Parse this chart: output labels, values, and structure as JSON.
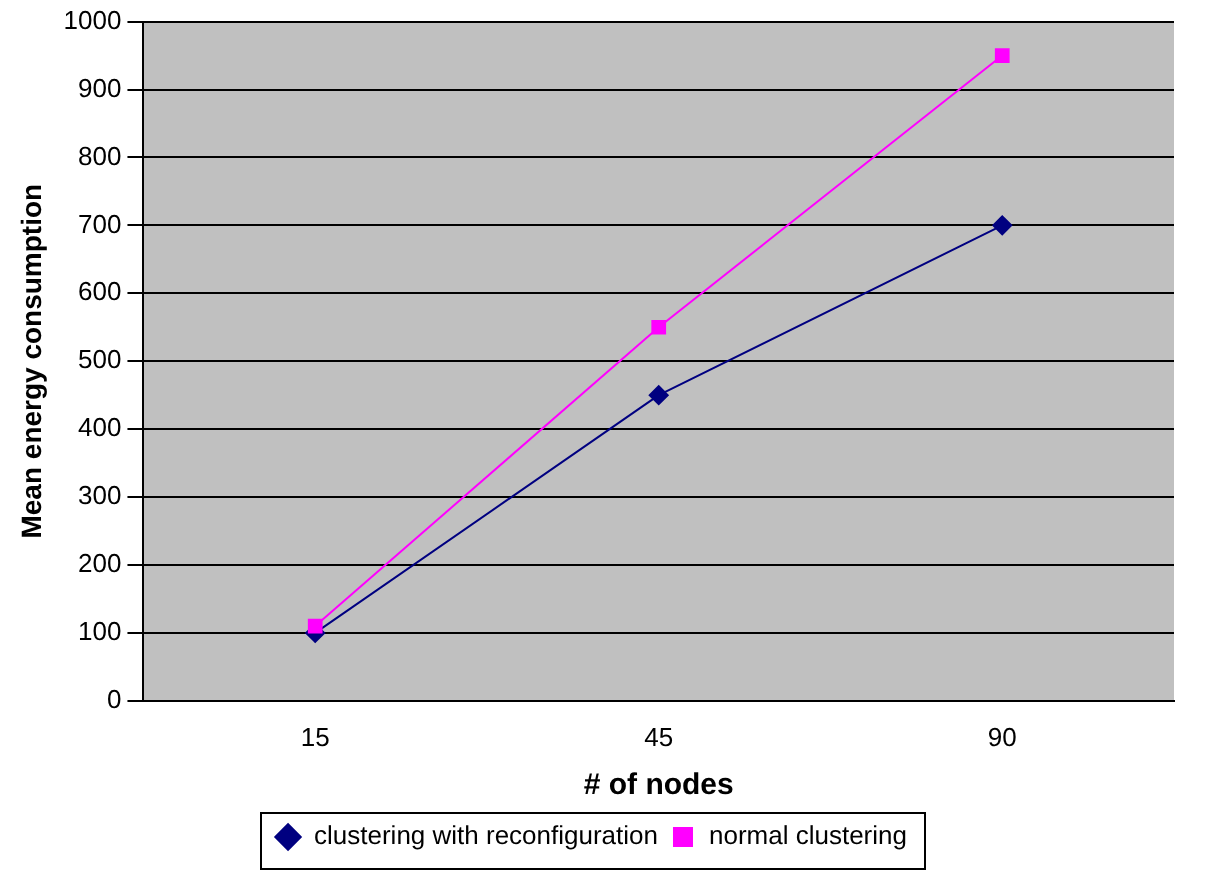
{
  "chart_data": {
    "type": "line",
    "xlabel": "# of nodes",
    "ylabel": "Mean energy consumption",
    "categories": [
      "15",
      "45",
      "90"
    ],
    "series": [
      {
        "name": "clustering with reconfiguration",
        "color": "#000080",
        "marker": "diamond",
        "values": [
          100,
          450,
          700
        ]
      },
      {
        "name": "normal clustering",
        "color": "#ff00ff",
        "marker": "square",
        "values": [
          110,
          550,
          950
        ]
      }
    ],
    "ylim": [
      0,
      1000
    ],
    "yticks": [
      0,
      100,
      200,
      300,
      400,
      500,
      600,
      700,
      800,
      900,
      1000
    ],
    "grid": "y",
    "legend": "bottom"
  }
}
